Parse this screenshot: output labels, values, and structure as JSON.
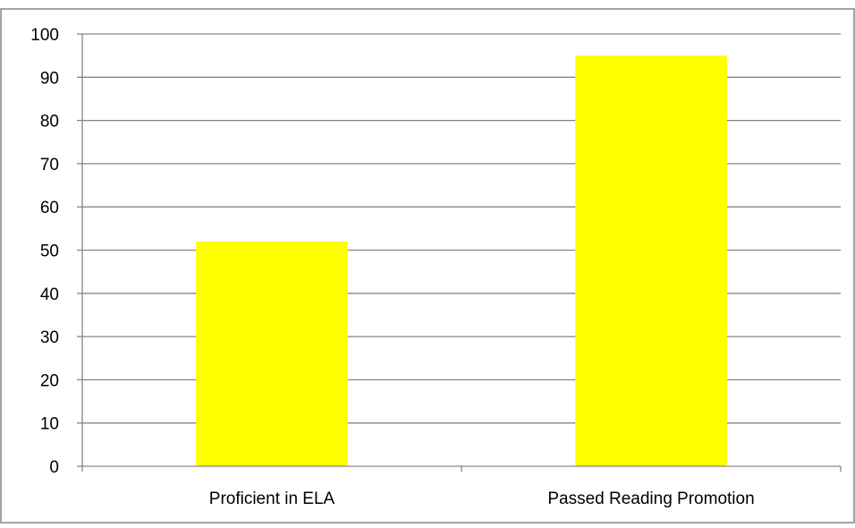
{
  "chart_data": {
    "type": "bar",
    "title": "",
    "xlabel": "",
    "ylabel": "",
    "categories": [
      "Proficient in ELA",
      "Passed Reading Promotion"
    ],
    "values": [
      52,
      95
    ],
    "ylim": [
      0,
      100
    ],
    "y_ticks": [
      "0",
      "10",
      "20",
      "30",
      "40",
      "50",
      "60",
      "70",
      "80",
      "90",
      "100"
    ],
    "grid": true,
    "legend": "none",
    "colors": {
      "bar": "#FFFF00",
      "grid": "#868686",
      "axis": "#868686",
      "border": "#868686"
    }
  }
}
